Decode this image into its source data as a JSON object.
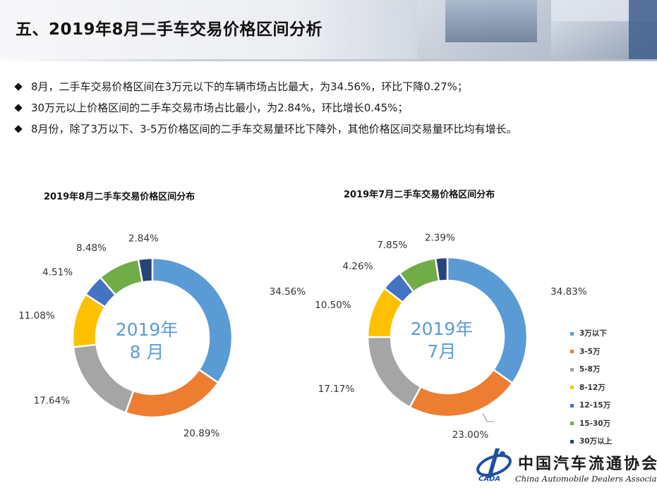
{
  "header": {
    "title": "五、2019年8月二手车交易价格区间分析"
  },
  "bullets": [
    "8月，二手车交易价格区间在3万元以下的车辆市场占比最大，为34.56%，环比下降0.27%；",
    "30万元以上价格区间的二手车交易市场占比最小，为2.84%，环比增长0.45%；",
    "8月份，除了3万以下、3-5万价格区间的二手车交易量环比下降外，其他价格区间交易量环比均有增长。"
  ],
  "chart_data": [
    {
      "type": "pie",
      "title": "2019年8月二手车交易价格区间分布",
      "center_label": [
        "2019年",
        "8 月"
      ],
      "categories": [
        "3万以下",
        "3-5万",
        "5-8万",
        "8-12万",
        "12-15万",
        "15-30万",
        "30万以上"
      ],
      "values": [
        34.56,
        20.89,
        17.64,
        11.08,
        4.51,
        8.48,
        2.84
      ],
      "data_labels": [
        "34.56%",
        "20.89%",
        "17.64%",
        "11.08%",
        "4.51%",
        "8.48%",
        "2.84%"
      ]
    },
    {
      "type": "pie",
      "title": "2019年7月二手车交易价格区间分布",
      "center_label": [
        "2019年",
        "7月"
      ],
      "categories": [
        "3万以下",
        "3-5万",
        "5-8万",
        "8-12万",
        "12-15万",
        "15-30万",
        "30万以上"
      ],
      "values": [
        34.83,
        23.0,
        17.17,
        10.5,
        4.26,
        7.85,
        2.39
      ],
      "data_labels": [
        "34.83%",
        "23.00%",
        "17.17%",
        "10.50%",
        "4.26%",
        "7.85%",
        "2.39%"
      ]
    }
  ],
  "legend": {
    "position": "right",
    "items": [
      "3万以下",
      "3-5万",
      "5-8万",
      "8-12万",
      "12-15万",
      "15-30万",
      "30万以上"
    ]
  },
  "colors": {
    "series": [
      "#5b9bd5",
      "#ed7d31",
      "#a5a5a5",
      "#ffc000",
      "#4472c4",
      "#70ad47",
      "#264478"
    ],
    "center_text": "#5b9bd5"
  },
  "logo": {
    "cn": "中国汽车流通协会",
    "en": "China Automobile Dealers Association",
    "mark": "CADA"
  }
}
